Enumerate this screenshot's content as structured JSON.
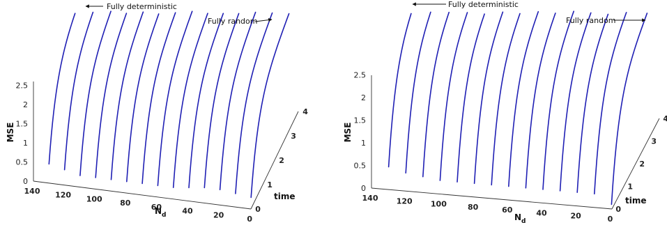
{
  "chart_data": [
    {
      "type": "line",
      "panel": "left",
      "xlabel": "N",
      "xlabel_sub": "d",
      "ylabel": "MSE",
      "zlabel": "time",
      "nd_ticks": [
        "140",
        "120",
        "100",
        "80",
        "60",
        "40",
        "20",
        "0"
      ],
      "mse_ticks": [
        "0",
        "0.5",
        "1",
        "1.5",
        "2",
        "2.5"
      ],
      "time_ticks": [
        "0",
        "1",
        "2",
        "3",
        "4"
      ],
      "annotations": {
        "left": "Fully deterministic",
        "right": "Fully random"
      },
      "nd_values": [
        130,
        120,
        110,
        100,
        90,
        80,
        70,
        60,
        50,
        40,
        30,
        20,
        10,
        0
      ],
      "start_mse": [
        0.5,
        0.4,
        0.3,
        0.3,
        0.3,
        0.3,
        0.3,
        0.3,
        0.3,
        0.35,
        0.4,
        0.4,
        0.35,
        0.3
      ]
    },
    {
      "type": "line",
      "panel": "right",
      "xlabel": "N",
      "xlabel_sub": "d",
      "ylabel": "MSE",
      "zlabel": "time",
      "nd_ticks": [
        "140",
        "120",
        "100",
        "80",
        "60",
        "40",
        "20",
        "0"
      ],
      "mse_ticks": [
        "0",
        "0.5",
        "1",
        "1.5",
        "2",
        "2.5"
      ],
      "time_ticks": [
        "0",
        "1",
        "2",
        "3",
        "4"
      ],
      "annotations": {
        "left": "Fully deterministic",
        "right": "Fully random"
      },
      "nd_values": [
        130,
        120,
        110,
        100,
        90,
        80,
        70,
        60,
        50,
        40,
        30,
        20,
        10,
        0
      ],
      "start_mse": [
        0.5,
        0.4,
        0.35,
        0.3,
        0.3,
        0.3,
        0.3,
        0.3,
        0.3,
        0.3,
        0.3,
        0.3,
        0.3,
        0.1
      ]
    }
  ]
}
